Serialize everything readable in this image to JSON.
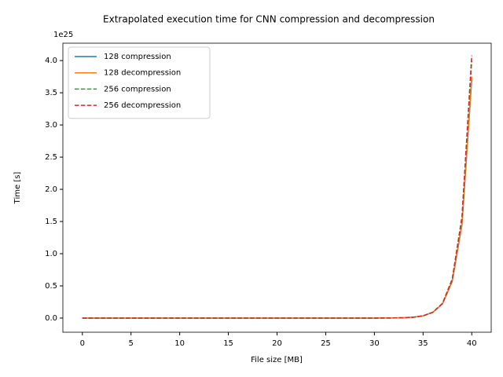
{
  "chart_data": {
    "type": "line",
    "title": "Extrapolated execution time for CNN compression and decompression",
    "x_label": "File size [MB]",
    "y_label": "Time [s]",
    "y_offset_label": "1e25",
    "x": [
      0,
      5,
      10,
      15,
      20,
      25,
      30,
      31,
      32,
      33,
      34,
      35,
      36,
      37,
      38,
      39,
      40
    ],
    "series": [
      {
        "name": "128 compression",
        "color": "#1f77b4",
        "dashed": false,
        "values": [
          0,
          0,
          0,
          0,
          0,
          0,
          0.0003,
          0.001,
          0.002,
          0.005,
          0.013,
          0.035,
          0.09,
          0.22,
          0.57,
          1.45,
          3.7
        ]
      },
      {
        "name": "128 decompression",
        "color": "#ff7f0e",
        "dashed": false,
        "values": [
          0,
          0,
          0,
          0,
          0,
          0,
          0.0003,
          0.001,
          0.002,
          0.005,
          0.013,
          0.035,
          0.09,
          0.22,
          0.58,
          1.47,
          3.75
        ]
      },
      {
        "name": "256 compression",
        "color": "#2ca02c",
        "dashed": true,
        "values": [
          0,
          0,
          0,
          0,
          0,
          0,
          0.0003,
          0.001,
          0.002,
          0.005,
          0.013,
          0.035,
          0.09,
          0.23,
          0.6,
          1.55,
          4.0
        ]
      },
      {
        "name": "256 decompression",
        "color": "#d62728",
        "dashed": true,
        "values": [
          0,
          0,
          0,
          0,
          0,
          0,
          0.0003,
          0.001,
          0.002,
          0.005,
          0.013,
          0.035,
          0.09,
          0.23,
          0.61,
          1.58,
          4.08
        ]
      }
    ],
    "xlim": [
      -2,
      42
    ],
    "ylim": [
      -0.22,
      4.27
    ],
    "xticks": [
      0,
      5,
      10,
      15,
      20,
      25,
      30,
      35,
      40
    ],
    "yticks": [
      {
        "value": 0,
        "label": "0.0"
      },
      0.5,
      {
        "value": 1,
        "label": "1.0"
      },
      1.5,
      {
        "value": 2,
        "label": "2.0"
      },
      2.5,
      {
        "value": 3,
        "label": "3.0"
      },
      3.5,
      {
        "value": 4,
        "label": "4.0"
      }
    ],
    "legend": "upper left",
    "grid": false
  }
}
